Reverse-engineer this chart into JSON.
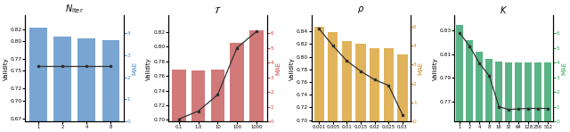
{
  "plot1": {
    "title": "$N_{\\mathrm{iter}}$",
    "bar_x_labels": [
      "1",
      "2",
      "4",
      "8"
    ],
    "bar_validity": [
      0.822,
      0.807,
      0.804,
      0.802
    ],
    "line_mae": [
      2.5,
      2.5,
      2.5,
      2.5
    ],
    "bar_color": "#6699cc",
    "line_color": "#333333",
    "ylabel_left": "Validity",
    "ylabel_right": "MAE",
    "ylim_left": [
      0.665,
      0.843
    ],
    "ylim_right": [
      0,
      4.8
    ],
    "yticks_left": [
      0.67,
      0.7,
      0.72,
      0.75,
      0.77,
      0.8,
      0.82
    ],
    "yticks_right": [
      0,
      1,
      2,
      3,
      4
    ],
    "mae_color": "#4488cc"
  },
  "plot2": {
    "title": "$\\mathcal{T}$",
    "bar_x_labels": [
      "0.1",
      "1.0",
      "10",
      "100",
      "1000"
    ],
    "bar_validity": [
      0.769,
      0.768,
      0.769,
      0.805,
      0.822
    ],
    "line_mae": [
      0.15,
      0.7,
      1.8,
      5.0,
      6.1
    ],
    "bar_color": "#cc6666",
    "line_color": "#333333",
    "ylabel_left": "Validity",
    "ylabel_right": "MAE",
    "ylim_left": [
      0.698,
      0.843
    ],
    "ylim_right": [
      0,
      7.2
    ],
    "yticks_left": [
      0.7,
      0.72,
      0.74,
      0.76,
      0.78,
      0.8,
      0.82
    ],
    "yticks_right": [
      0,
      1,
      2,
      3,
      4,
      5,
      6
    ],
    "mae_color": "#cc4444"
  },
  "plot3": {
    "title": "$\\rho$",
    "bar_x_labels": [
      "0.001",
      "0.005",
      "0.01",
      "0.015",
      "0.02",
      "0.025",
      "0.03"
    ],
    "bar_validity": [
      0.847,
      0.838,
      0.824,
      0.82,
      0.814,
      0.813,
      0.803
    ],
    "line_mae": [
      4.9,
      4.0,
      3.2,
      2.65,
      2.2,
      1.9,
      0.35
    ],
    "bar_color": "#ddaa44",
    "line_color": "#333333",
    "ylabel_left": "Validity",
    "ylabel_right": "MAE",
    "ylim_left": [
      0.698,
      0.865
    ],
    "ylim_right": [
      0,
      5.6
    ],
    "yticks_left": [
      0.7,
      0.72,
      0.74,
      0.76,
      0.78,
      0.8,
      0.82,
      0.84
    ],
    "yticks_right": [
      0,
      1,
      2,
      3,
      4,
      5
    ],
    "mae_color": "#cc8822"
  },
  "plot4": {
    "title": "$K$",
    "bar_x_labels": [
      "1",
      "2",
      "4",
      "8",
      "16",
      "32",
      "64",
      "128",
      "256",
      "512"
    ],
    "bar_validity": [
      0.835,
      0.822,
      0.812,
      0.806,
      0.804,
      0.803,
      0.803,
      0.803,
      0.803,
      0.803
    ],
    "line_mae": [
      6.0,
      5.1,
      3.95,
      3.1,
      1.0,
      0.8,
      0.85,
      0.88,
      0.88,
      0.88
    ],
    "bar_color": "#44aa77",
    "line_color": "#333333",
    "ylabel_left": "Validity",
    "ylabel_right": "MAE",
    "ylim_left": [
      0.753,
      0.843
    ],
    "ylim_right": [
      0,
      7.2
    ],
    "yticks_left": [
      0.77,
      0.79,
      0.81,
      0.83
    ],
    "yticks_right": [
      0,
      1,
      2,
      3,
      4,
      5,
      6
    ],
    "mae_color": "#33aa55"
  }
}
